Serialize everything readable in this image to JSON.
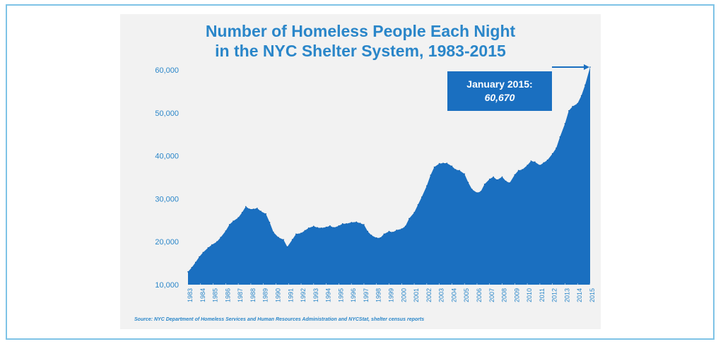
{
  "chart_data": {
    "type": "area",
    "title": "Number of Homeless People Each Night",
    "subtitle": "in the NYC Shelter System, 1983-2015",
    "xlabel": "",
    "ylabel": "",
    "ylim": [
      10000,
      61000
    ],
    "yticks": [
      "10,000",
      "20,000",
      "30,000",
      "40,000",
      "50,000",
      "60,000"
    ],
    "ytick_values": [
      10000,
      20000,
      30000,
      40000,
      50000,
      60000
    ],
    "xticks": [
      "1983",
      "1984",
      "1985",
      "1986",
      "1987",
      "1988",
      "1989",
      "1990",
      "1991",
      "1992",
      "1993",
      "1994",
      "1995",
      "1996",
      "1997",
      "1998",
      "1999",
      "2000",
      "2001",
      "2002",
      "2003",
      "2004",
      "2005",
      "2006",
      "2007",
      "2008",
      "2009",
      "2010",
      "2011",
      "2012",
      "2013",
      "2014",
      "2015"
    ],
    "grid": false,
    "color": "#1a6fc0",
    "series": [
      {
        "name": "",
        "x": [
          1983.0,
          1983.3,
          1983.6,
          1983.9,
          1984.2,
          1984.6,
          1984.9,
          1985.3,
          1985.6,
          1986.0,
          1986.3,
          1986.6,
          1987.0,
          1987.3,
          1987.6,
          1987.9,
          1988.2,
          1988.5,
          1988.8,
          1989.2,
          1989.5,
          1989.8,
          1990.2,
          1990.6,
          1990.9,
          1991.3,
          1991.6,
          1992.0,
          1992.3,
          1992.6,
          1993.0,
          1993.3,
          1993.6,
          1994.0,
          1994.3,
          1994.6,
          1995.0,
          1995.3,
          1995.6,
          1996.0,
          1996.4,
          1996.7,
          1997.0,
          1997.3,
          1997.6,
          1998.0,
          1998.3,
          1998.6,
          1999.0,
          1999.3,
          1999.6,
          2000.0,
          2000.3,
          2000.6,
          2001.0,
          2001.3,
          2001.6,
          2002.0,
          2002.3,
          2002.6,
          2003.0,
          2003.3,
          2003.6,
          2004.0,
          2004.3,
          2004.6,
          2005.0,
          2005.3,
          2005.6,
          2006.0,
          2006.3,
          2006.6,
          2007.0,
          2007.3,
          2007.6,
          2008.0,
          2008.3,
          2008.6,
          2009.0,
          2009.3,
          2009.6,
          2010.0,
          2010.3,
          2010.6,
          2011.0,
          2011.3,
          2011.6,
          2012.0,
          2012.3,
          2012.6,
          2013.0,
          2013.3,
          2013.6,
          2014.0,
          2014.3,
          2014.6,
          2015.0
        ],
        "values": [
          13000,
          14000,
          15200,
          16500,
          17500,
          18600,
          19300,
          20000,
          21000,
          22500,
          24000,
          24800,
          25600,
          26800,
          28200,
          27600,
          27600,
          27800,
          27100,
          26500,
          24500,
          22200,
          21000,
          20500,
          18800,
          20500,
          21800,
          22000,
          22600,
          23200,
          23600,
          23300,
          23200,
          23400,
          23700,
          23300,
          23700,
          24200,
          24200,
          24500,
          24600,
          24300,
          24000,
          22400,
          21500,
          20900,
          20900,
          21800,
          22400,
          22200,
          22700,
          23000,
          23600,
          25400,
          26800,
          28600,
          30400,
          33000,
          35500,
          37400,
          38200,
          38300,
          38300,
          37600,
          36800,
          36600,
          35800,
          33800,
          32200,
          31400,
          31700,
          33400,
          34600,
          35100,
          34400,
          35100,
          34100,
          33700,
          35600,
          36600,
          36800,
          37800,
          38800,
          38600,
          37800,
          38400,
          39000,
          40500,
          41800,
          44400,
          47500,
          50500,
          51500,
          52200,
          54000,
          56500,
          60670
        ]
      }
    ],
    "annotations": [
      {
        "label": "January 2015:",
        "value_label": "60,670",
        "x": 2015.0,
        "y": 60670
      }
    ],
    "source": "Source:  NYC Department of Homeless Services and Human Resources Administration and NYCStat, shelter census reports"
  }
}
